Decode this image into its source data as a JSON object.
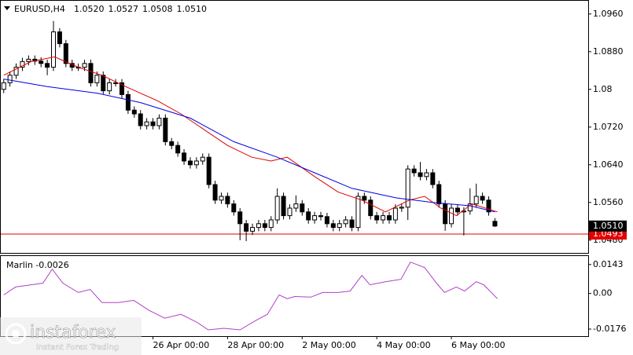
{
  "chart_data": [
    {
      "type": "candlestick",
      "title": "EURUSD,H4",
      "header_values": [
        "1.0520",
        "1.0527",
        "1.0508",
        "1.0510"
      ],
      "open": [
        1.08,
        1.0814,
        1.083,
        1.0847,
        1.0859,
        1.0864,
        1.086,
        1.0855,
        1.0847,
        1.0922,
        1.0897,
        1.0855,
        1.0847,
        1.0847,
        1.0855,
        1.0814,
        1.083,
        1.0797,
        1.0814,
        1.0814,
        1.0789,
        1.0756,
        1.0748,
        1.0723,
        1.0731,
        1.0723,
        1.0739,
        1.0689,
        1.0681,
        1.0665,
        1.0648,
        1.064,
        1.0648,
        1.0656,
        1.0598,
        1.0565,
        1.0573,
        1.0557,
        1.054,
        1.0515,
        1.0499,
        1.0507,
        1.0515,
        1.0507,
        1.0523,
        1.0573,
        1.0532,
        1.0548,
        1.0557,
        1.054,
        1.0523,
        1.0532,
        1.053,
        1.0515,
        1.0507,
        1.0515,
        1.0523,
        1.0507,
        1.0573,
        1.0565,
        1.0532,
        1.0523,
        1.0532,
        1.0523,
        1.0548,
        1.055,
        1.0631,
        1.0623,
        1.0615,
        1.0623,
        1.0598,
        1.0557,
        1.0515,
        1.0548,
        1.054,
        1.0542,
        1.0557,
        1.0573,
        1.0565,
        1.052
      ],
      "high": [
        1.0822,
        1.0838,
        1.0855,
        1.0867,
        1.0872,
        1.0872,
        1.0868,
        1.0863,
        1.0945,
        1.093,
        1.0905,
        1.0863,
        1.0855,
        1.0863,
        1.0863,
        1.0838,
        1.0838,
        1.0822,
        1.0822,
        1.0822,
        1.0797,
        1.0764,
        1.0756,
        1.0739,
        1.0739,
        1.0747,
        1.0747,
        1.0697,
        1.0689,
        1.0673,
        1.0656,
        1.0656,
        1.0664,
        1.0664,
        1.0606,
        1.0581,
        1.0581,
        1.0565,
        1.0548,
        1.0523,
        1.0515,
        1.0523,
        1.0523,
        1.0531,
        1.059,
        1.0581,
        1.0556,
        1.0575,
        1.0565,
        1.0548,
        1.054,
        1.054,
        1.0538,
        1.0523,
        1.0523,
        1.0531,
        1.0531,
        1.0581,
        1.0581,
        1.0573,
        1.054,
        1.054,
        1.054,
        1.0556,
        1.0558,
        1.0639,
        1.0639,
        1.0646,
        1.0631,
        1.0631,
        1.0606,
        1.0565,
        1.0556,
        1.0556,
        1.055,
        1.059,
        1.06,
        1.0581,
        1.0573,
        1.0527
      ],
      "low": [
        1.0792,
        1.0806,
        1.0822,
        1.0839,
        1.0851,
        1.0852,
        1.0847,
        1.083,
        1.0839,
        1.0889,
        1.0847,
        1.0839,
        1.0839,
        1.0839,
        1.0806,
        1.0806,
        1.0789,
        1.0789,
        1.0806,
        1.0781,
        1.0748,
        1.074,
        1.0715,
        1.0715,
        1.0715,
        1.0715,
        1.0681,
        1.0673,
        1.0657,
        1.064,
        1.0632,
        1.0632,
        1.064,
        1.059,
        1.0557,
        1.0557,
        1.0549,
        1.0532,
        1.048,
        1.0478,
        1.0491,
        1.0499,
        1.0499,
        1.0499,
        1.0515,
        1.0524,
        1.0524,
        1.054,
        1.0532,
        1.0515,
        1.0515,
        1.0522,
        1.0507,
        1.0499,
        1.0499,
        1.0507,
        1.0499,
        1.0499,
        1.0557,
        1.0524,
        1.0515,
        1.0515,
        1.0515,
        1.0515,
        1.054,
        1.0523,
        1.0615,
        1.0607,
        1.0607,
        1.059,
        1.0549,
        1.05,
        1.0507,
        1.0532,
        1.049,
        1.0534,
        1.0549,
        1.0557,
        1.0532,
        1.0508
      ],
      "close": [
        1.0814,
        1.083,
        1.0847,
        1.0859,
        1.0864,
        1.086,
        1.0855,
        1.0847,
        1.0922,
        1.0897,
        1.0855,
        1.0847,
        1.0847,
        1.0855,
        1.0814,
        1.083,
        1.0797,
        1.0814,
        1.0814,
        1.0789,
        1.0756,
        1.0748,
        1.0723,
        1.0731,
        1.0723,
        1.0739,
        1.0689,
        1.0681,
        1.0665,
        1.0648,
        1.064,
        1.0648,
        1.0656,
        1.0598,
        1.0565,
        1.0573,
        1.0557,
        1.054,
        1.0515,
        1.0499,
        1.0507,
        1.0515,
        1.0507,
        1.0523,
        1.0573,
        1.0532,
        1.0548,
        1.0557,
        1.054,
        1.0523,
        1.0532,
        1.053,
        1.0515,
        1.0507,
        1.0515,
        1.0523,
        1.0507,
        1.0573,
        1.0565,
        1.0532,
        1.0523,
        1.0532,
        1.0523,
        1.0548,
        1.055,
        1.0631,
        1.0623,
        1.0615,
        1.0623,
        1.0598,
        1.0557,
        1.0515,
        1.0548,
        1.054,
        1.0542,
        1.0557,
        1.0573,
        1.0565,
        1.054,
        1.051
      ],
      "overlays": [
        {
          "color": "#e00000",
          "x": [
            0,
            4.4,
            8.2,
            12,
            15.8,
            19.6,
            24.7,
            28.5,
            32.3,
            36,
            39.9,
            43,
            45.6,
            50,
            53.8,
            57.6,
            61.4,
            65.2,
            67.7,
            70.3,
            72.8,
            75.3,
            79.4
          ],
          "values": [
            1.083,
            1.0859,
            1.0869,
            1.0847,
            1.083,
            1.0806,
            1.0776,
            1.0748,
            1.0714,
            1.0681,
            1.0656,
            1.0648,
            1.0656,
            1.0615,
            1.0582,
            1.0565,
            1.054,
            1.0565,
            1.0573,
            1.0548,
            1.0532,
            1.0557,
            1.054
          ]
        },
        {
          "color": "#0000e0",
          "x": [
            0,
            7,
            15,
            22,
            30,
            37,
            44,
            50,
            56,
            63,
            69,
            75,
            79
          ],
          "values": [
            1.0822,
            1.0806,
            1.0792,
            1.0772,
            1.0739,
            1.0689,
            1.0656,
            1.0623,
            1.059,
            1.057,
            1.056,
            1.0553,
            1.054
          ]
        }
      ],
      "price_line": {
        "value": 1.0493,
        "label": "1.0493",
        "color": "#e00000"
      },
      "last_price": {
        "value": 1.051,
        "label": "1.0510"
      },
      "xlim": [
        -0.6,
        94
      ],
      "ylim": [
        1.0453,
        1.0988
      ],
      "yticks": [
        {
          "value": 1.096,
          "label": "1.0960"
        },
        {
          "value": 1.088,
          "label": "1.0880"
        },
        1.08,
        {
          "value": 1.072,
          "label": "1.0720"
        },
        {
          "value": 1.064,
          "label": "1.0640"
        },
        {
          "value": 1.056,
          "label": "1.0560"
        },
        {
          "value": 1.048,
          "label": "1.0480"
        }
      ],
      "xticks": [
        {
          "value": 24,
          "label": "26 Apr 00:00"
        },
        {
          "value": 36,
          "label": "28 Apr 00:00"
        },
        {
          "value": 48,
          "label": "2 May 00:00"
        },
        {
          "value": 60,
          "label": "4 May 00:00"
        },
        {
          "value": 72,
          "label": "6 May 00:00"
        }
      ]
    },
    {
      "type": "line",
      "title": "Marlin -0.0026",
      "color": "#b040c8",
      "x": [
        0,
        1.9,
        4.4,
        6.3,
        7.8,
        9.5,
        12,
        13.9,
        15.8,
        18.4,
        20.9,
        23.4,
        25.9,
        28.5,
        31,
        32.9,
        35.4,
        38,
        40.5,
        42.4,
        44.3,
        45.6,
        46.8,
        49.4,
        51.3,
        53.8,
        55.7,
        57.6,
        58.9,
        61.4,
        63.9,
        65.4,
        67.7,
        69.6,
        70.9,
        72.8,
        74.1,
        76,
        77.2,
        79.4
      ],
      "values": [
        -0.0007,
        0.0032,
        0.0043,
        0.0051,
        0.012,
        0.0051,
        0.0005,
        0.002,
        -0.0045,
        -0.0045,
        -0.0034,
        -0.0084,
        -0.0122,
        -0.0103,
        -0.0141,
        -0.018,
        -0.0172,
        -0.018,
        -0.0134,
        -0.0103,
        -0.0007,
        -0.0026,
        -0.0015,
        -0.0018,
        0.0005,
        0.0005,
        0.0012,
        0.0089,
        0.0043,
        0.0058,
        0.007,
        0.0155,
        0.0128,
        0.0051,
        0.0005,
        0.0032,
        0.0012,
        0.0058,
        0.0043,
        -0.0026
      ],
      "xlim": [
        -0.6,
        94
      ],
      "ylim": [
        -0.0211,
        0.0185
      ],
      "yticks": [
        0.0143,
        {
          "value": 0,
          "label": "0.00"
        },
        -0.0176
      ]
    }
  ],
  "watermark": {
    "brand": "instaforex",
    "slogan": "Instant Forex Trading"
  }
}
